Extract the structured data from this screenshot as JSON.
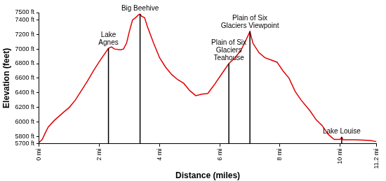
{
  "chart_data": {
    "type": "line",
    "x_label": "Distance (miles)",
    "y_label": "Elevation (feet)",
    "color": "#e00000",
    "grid": false,
    "x": [
      0,
      0.1,
      0.2,
      0.3,
      0.5,
      0.8,
      1.0,
      1.2,
      1.4,
      1.6,
      1.8,
      2.0,
      2.2,
      2.3,
      2.4,
      2.5,
      2.7,
      2.8,
      2.9,
      3.0,
      3.1,
      3.2,
      3.3,
      3.35,
      3.4,
      3.5,
      3.6,
      3.8,
      4.0,
      4.2,
      4.4,
      4.6,
      4.8,
      5.0,
      5.2,
      5.4,
      5.6,
      5.8,
      6.0,
      6.2,
      6.3,
      6.5,
      6.7,
      6.9,
      7.0,
      7.1,
      7.3,
      7.5,
      7.7,
      7.9,
      8.1,
      8.3,
      8.5,
      8.7,
      9.0,
      9.2,
      9.4,
      9.6,
      9.8,
      10.0,
      10.05,
      10.1,
      10.5,
      11.0,
      11.2
    ],
    "values": [
      5720,
      5760,
      5850,
      5930,
      6020,
      6130,
      6200,
      6300,
      6430,
      6560,
      6700,
      6830,
      6950,
      7010,
      7030,
      7000,
      6990,
      7000,
      7080,
      7250,
      7400,
      7430,
      7470,
      7480,
      7450,
      7430,
      7300,
      7080,
      6880,
      6750,
      6650,
      6580,
      6530,
      6430,
      6360,
      6380,
      6390,
      6500,
      6620,
      6740,
      6800,
      6880,
      6980,
      7150,
      7240,
      7080,
      6950,
      6880,
      6850,
      6820,
      6700,
      6600,
      6420,
      6300,
      6150,
      6030,
      5950,
      5830,
      5760,
      5760,
      5790,
      5755,
      5755,
      5745,
      5730
    ],
    "xlim": [
      0,
      11.2
    ],
    "xticks": [
      {
        "value": 0,
        "label": "0 mi"
      },
      {
        "value": 2,
        "label": "2 mi"
      },
      {
        "value": 4,
        "label": "4 mi"
      },
      {
        "value": 6,
        "label": "6 mi"
      },
      {
        "value": 8,
        "label": "8 mi"
      },
      {
        "value": 10,
        "label": "10 mi"
      },
      {
        "value": 11.2,
        "label": "11.2 mi"
      }
    ],
    "ylim": [
      5700,
      7500
    ],
    "yticks": [
      {
        "value": 5700,
        "label": "5700 ft"
      },
      {
        "value": 5800,
        "label": "5800 ft"
      },
      {
        "value": 6000,
        "label": "6000 ft"
      },
      {
        "value": 6200,
        "label": "6200 ft"
      },
      {
        "value": 6400,
        "label": "6400 ft"
      },
      {
        "value": 6600,
        "label": "6600 ft"
      },
      {
        "value": 6800,
        "label": "6800 ft"
      },
      {
        "value": 7000,
        "label": "7000 ft"
      },
      {
        "value": 7200,
        "label": "7200 ft"
      },
      {
        "value": 7400,
        "label": "7400 ft"
      },
      {
        "value": 7500,
        "label": "7500 ft"
      }
    ],
    "annotations": [
      {
        "x": 2.3,
        "y": 7010,
        "text": [
          "Lake",
          "Agnes"
        ]
      },
      {
        "x": 3.35,
        "y": 7480,
        "text": [
          "Big Beehive"
        ]
      },
      {
        "x": 6.3,
        "y": 6800,
        "text": [
          "Plain of Six",
          "Glaciers",
          "Teahouse"
        ]
      },
      {
        "x": 7.0,
        "y": 7240,
        "text": [
          "Plain of Six",
          "Glaciers Viewpoint"
        ]
      },
      {
        "x": 10.05,
        "y": 5790,
        "text": [
          "Lake Louise"
        ]
      }
    ]
  }
}
